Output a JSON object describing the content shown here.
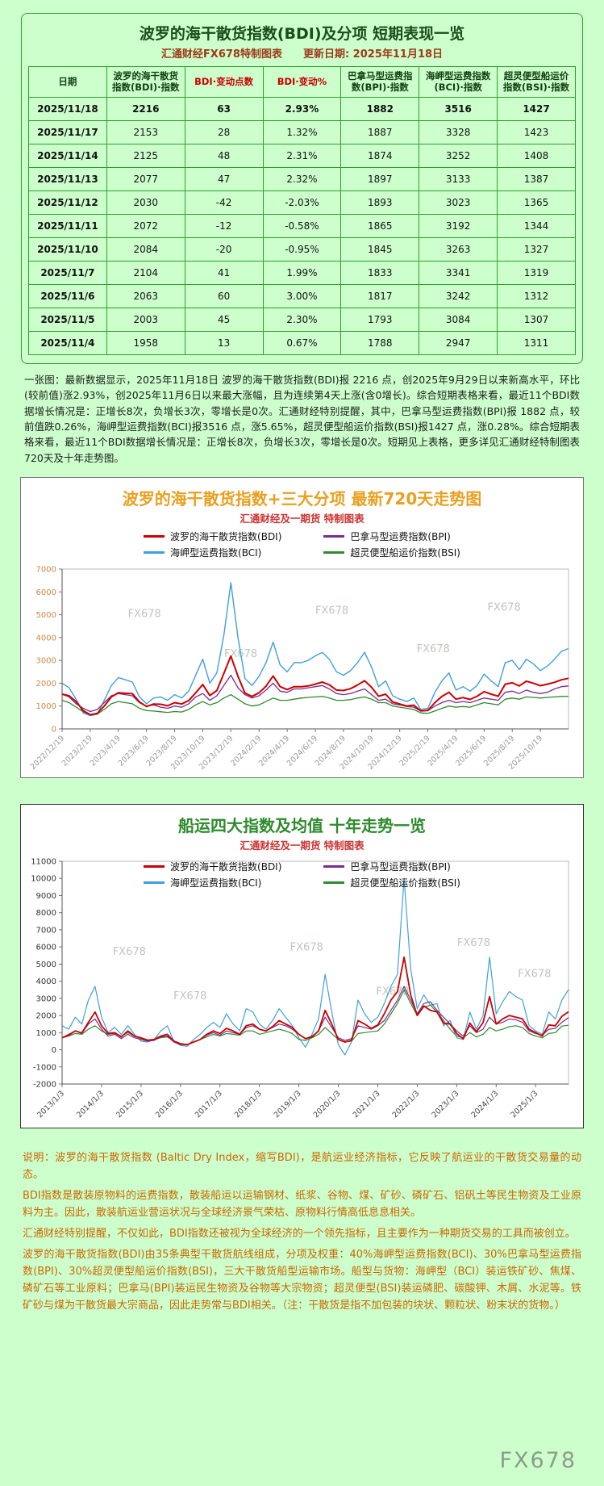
{
  "page": {
    "watermark": "FX678",
    "background": "#ccffcc"
  },
  "table_section": {
    "title": "波罗的海干散货指数(BDI)及分项  短期表现一览",
    "subtitle": "汇通财经FX678特制图表　　更新日期: 2025年11月18日",
    "columns": [
      "日期",
      "波罗的海干散货指数(BDI)·指数",
      "BDI·变动点数",
      "BDI·变动%",
      "巴拿马型运费指数(BPI)·指数",
      "海岬型运费指数(BCI)·指数",
      "超灵便型船运价指数(BSI)·指数"
    ],
    "highlight_columns": [
      2,
      3
    ],
    "rows": [
      [
        "2025/11/18",
        "2216",
        "63",
        "2.93%",
        "1882",
        "3516",
        "1427"
      ],
      [
        "2025/11/17",
        "2153",
        "28",
        "1.32%",
        "1887",
        "3328",
        "1423"
      ],
      [
        "2025/11/14",
        "2125",
        "48",
        "2.31%",
        "1874",
        "3252",
        "1408"
      ],
      [
        "2025/11/13",
        "2077",
        "47",
        "2.32%",
        "1897",
        "3133",
        "1387"
      ],
      [
        "2025/11/12",
        "2030",
        "-42",
        "-2.03%",
        "1893",
        "3023",
        "1365"
      ],
      [
        "2025/11/11",
        "2072",
        "-12",
        "-0.58%",
        "1865",
        "3192",
        "1344"
      ],
      [
        "2025/11/10",
        "2084",
        "-20",
        "-0.95%",
        "1845",
        "3263",
        "1327"
      ],
      [
        "2025/11/7",
        "2104",
        "41",
        "1.99%",
        "1833",
        "3341",
        "1319"
      ],
      [
        "2025/11/6",
        "2063",
        "60",
        "3.00%",
        "1817",
        "3242",
        "1312"
      ],
      [
        "2025/11/5",
        "2003",
        "45",
        "2.30%",
        "1793",
        "3084",
        "1307"
      ],
      [
        "2025/11/4",
        "1958",
        "13",
        "0.67%",
        "1788",
        "2947",
        "1311"
      ]
    ],
    "note": "一张图：最新数据显示，2025年11月18日 波罗的海干散货指数(BDI)报 2216 点，创2025年9月29日以来新高水平，环比(较前值)涨2.93%，创2025年11月6日以来最大涨幅，且为连续第4天上涨(含0增长)。综合短期表格来看，最近11个BDI数据增长情况是：正增长8次，负增长3次，零增长是0次。汇通财经特别提醒，其中，巴拿马型运费指数(BPI)报 1882 点，较前值跌0.26%，海岬型运费指数(BCI)报3516 点，涨5.65%，超灵便型船运价指数(BSI)报1427 点，涨0.28%。综合短期表格来看，最近11个BDI数据增长情况是：正增长8次，负增长3次，零增长是0次。短期见上表格，更多详见汇通财经特制图表720天及十年走势图。"
  },
  "chart_data": [
    {
      "type": "line",
      "title": "波罗的海干散货指数+三大分项  最新720天走势图",
      "subtitle": "汇通财经及一期货 特制图表",
      "title_color": "#e8a020",
      "subtitle_color": "#cc3333",
      "ytick_color": "#cc8844",
      "xtick_color": "#999999",
      "ylim": [
        0,
        7000
      ],
      "ytick_step": 1000,
      "legend_position": "top",
      "grid": false,
      "x_labels": [
        "2022/12/19",
        "2023/2/19",
        "2023/4/19",
        "2023/6/19",
        "2023/8/19",
        "2023/10/19",
        "2023/12/19",
        "2024/2/19",
        "2024/4/19",
        "2024/6/19",
        "2024/8/19",
        "2024/10/19",
        "2024/12/19",
        "2025/2/19",
        "2025/4/19",
        "2025/6/19",
        "2025/8/19",
        "2025/10/19"
      ],
      "series": [
        {
          "name": "波罗的海干散货指数(BDI)",
          "color": "#cc0000",
          "width": 2,
          "values": [
            1520,
            1450,
            1200,
            800,
            620,
            680,
            1000,
            1400,
            1580,
            1560,
            1540,
            1180,
            980,
            1090,
            1080,
            1010,
            1150,
            1090,
            1240,
            1580,
            1940,
            1460,
            1680,
            2430,
            3190,
            2300,
            1570,
            1420,
            1580,
            1870,
            2320,
            1850,
            1720,
            1850,
            1850,
            1880,
            1960,
            2050,
            1930,
            1700,
            1680,
            1760,
            1920,
            2110,
            1820,
            1430,
            1520,
            1180,
            1090,
            1000,
            1040,
            790,
            810,
            1150,
            1420,
            1600,
            1300,
            1370,
            1290,
            1430,
            1630,
            1520,
            1430,
            1960,
            2020,
            1880,
            2090,
            2000,
            1890,
            1960,
            2040,
            2150,
            2216
          ]
        },
        {
          "name": "巴拿马型运费指数(BPI)",
          "color": "#7a2d8e",
          "width": 1.3,
          "values": [
            1520,
            1400,
            1100,
            900,
            760,
            850,
            1150,
            1450,
            1550,
            1500,
            1450,
            1150,
            1000,
            1050,
            950,
            900,
            1000,
            950,
            1100,
            1400,
            1550,
            1250,
            1450,
            1900,
            2350,
            1800,
            1500,
            1350,
            1450,
            1700,
            2000,
            1650,
            1600,
            1750,
            1750,
            1800,
            1850,
            1900,
            1750,
            1550,
            1500,
            1550,
            1650,
            1750,
            1500,
            1250,
            1300,
            1100,
            1050,
            980,
            950,
            780,
            800,
            1000,
            1150,
            1250,
            1150,
            1200,
            1150,
            1250,
            1350,
            1300,
            1250,
            1600,
            1650,
            1550,
            1700,
            1600,
            1550,
            1600,
            1750,
            1850,
            1882
          ]
        },
        {
          "name": "海岬型运费指数(BCI)",
          "color": "#3fa0dc",
          "width": 1.4,
          "values": [
            2000,
            1800,
            1300,
            700,
            580,
            640,
            1250,
            1900,
            2250,
            2150,
            2050,
            1400,
            1100,
            1350,
            1400,
            1250,
            1500,
            1350,
            1650,
            2350,
            3050,
            2000,
            2450,
            4100,
            6400,
            4000,
            2200,
            1900,
            2300,
            2900,
            3800,
            2800,
            2500,
            2900,
            2900,
            3000,
            3200,
            3350,
            3050,
            2500,
            2350,
            2550,
            2900,
            3350,
            2700,
            1850,
            2100,
            1450,
            1300,
            1200,
            1350,
            850,
            900,
            1600,
            2100,
            2450,
            1700,
            1850,
            1650,
            1900,
            2400,
            2100,
            1850,
            2900,
            3000,
            2600,
            3050,
            2850,
            2550,
            2750,
            3050,
            3400,
            3516
          ]
        },
        {
          "name": "超灵便型船运价指数(BSI)",
          "color": "#2e8b2e",
          "width": 1.3,
          "values": [
            1250,
            1150,
            950,
            750,
            620,
            650,
            850,
            1100,
            1200,
            1150,
            1100,
            900,
            800,
            780,
            750,
            720,
            760,
            740,
            850,
            1050,
            1200,
            1050,
            1150,
            1350,
            1500,
            1300,
            1100,
            1000,
            1050,
            1200,
            1350,
            1250,
            1250,
            1300,
            1350,
            1380,
            1400,
            1420,
            1350,
            1250,
            1250,
            1280,
            1350,
            1400,
            1300,
            1150,
            1150,
            1000,
            950,
            900,
            850,
            700,
            680,
            780,
            900,
            1000,
            950,
            980,
            950,
            1050,
            1150,
            1100,
            1050,
            1300,
            1350,
            1300,
            1400,
            1380,
            1350,
            1380,
            1400,
            1420,
            1427
          ]
        }
      ]
    },
    {
      "type": "line",
      "title": "船运四大指数及均值 十年走势一览",
      "subtitle": "汇通财经及一期货 特制图表",
      "title_color": "#2e8b2e",
      "subtitle_color": "#cc3333",
      "ytick_color": "#333333",
      "xtick_color": "#444444",
      "ylim": [
        -2000,
        11000
      ],
      "ytick_step": 1000,
      "legend_position": "inside-top",
      "grid": false,
      "x_labels": [
        "2013/1/3",
        "2014/1/3",
        "2015/1/3",
        "2016/1/3",
        "2017/1/3",
        "2018/1/3",
        "2019/1/3",
        "2020/1/3",
        "2021/1/3",
        "2022/1/3",
        "2023/1/3",
        "2024/1/3",
        "2025/1/3"
      ],
      "series": [
        {
          "name": "波罗的海干散货指数(BDI)",
          "color": "#cc0000",
          "width": 1.8,
          "values": [
            700,
            850,
            1100,
            980,
            1600,
            2200,
            1400,
            950,
            1000,
            750,
            1100,
            800,
            700,
            560,
            600,
            800,
            900,
            500,
            350,
            300,
            450,
            600,
            900,
            1100,
            950,
            1250,
            1100,
            900,
            1400,
            1500,
            1200,
            1100,
            1350,
            1700,
            1500,
            1300,
            900,
            650,
            750,
            1100,
            2300,
            1500,
            600,
            450,
            550,
            1700,
            1500,
            1250,
            1450,
            2100,
            2900,
            3400,
            5400,
            3200,
            2000,
            2550,
            2300,
            2200,
            1550,
            1500,
            950,
            640,
            1560,
            1050,
            1580,
            3100,
            1500,
            1800,
            2000,
            1900,
            1800,
            1200,
            1000,
            800,
            1450,
            1400,
            1950,
            2216
          ]
        },
        {
          "name": "巴拿马型运费指数(BPI)",
          "color": "#7a2d8e",
          "width": 1.2,
          "values": [
            700,
            900,
            1100,
            950,
            1500,
            1800,
            1200,
            800,
            900,
            650,
            900,
            700,
            600,
            500,
            550,
            750,
            800,
            450,
            300,
            290,
            450,
            600,
            850,
            1000,
            850,
            1100,
            1000,
            900,
            1300,
            1400,
            1200,
            1100,
            1300,
            1500,
            1400,
            1200,
            900,
            650,
            800,
            1100,
            1900,
            1300,
            700,
            550,
            650,
            1400,
            1300,
            1200,
            1400,
            1700,
            2300,
            2900,
            3700,
            2900,
            2100,
            2700,
            2800,
            2300,
            1900,
            1500,
            1100,
            800,
            1400,
            1000,
            1200,
            1900,
            1500,
            1600,
            1800,
            1750,
            1600,
            1100,
            950,
            850,
            1200,
            1250,
            1600,
            1882
          ]
        },
        {
          "name": "海岬型运费指数(BCI)",
          "color": "#3fa0dc",
          "width": 1.2,
          "values": [
            1400,
            1200,
            1900,
            1500,
            2900,
            3700,
            1900,
            1000,
            1300,
            900,
            1400,
            900,
            500,
            450,
            600,
            1100,
            1400,
            500,
            250,
            200,
            600,
            900,
            1300,
            1600,
            1300,
            2100,
            1500,
            1100,
            2400,
            2200,
            1500,
            1200,
            1700,
            2400,
            1900,
            1400,
            700,
            150,
            900,
            1800,
            4400,
            2200,
            300,
            -300,
            450,
            2900,
            2100,
            1600,
            1900,
            2700,
            3700,
            4400,
            10000,
            4700,
            2400,
            3200,
            2600,
            2700,
            1400,
            1700,
            700,
            600,
            2200,
            1200,
            2000,
            5400,
            2100,
            2800,
            3400,
            3100,
            2900,
            1400,
            1100,
            900,
            2200,
            1800,
            2900,
            3516
          ]
        },
        {
          "name": "超灵便型船运价指数(BSI)",
          "color": "#2e8b2e",
          "width": 1.2,
          "values": [
            700,
            800,
            950,
            900,
            1200,
            1400,
            1100,
            900,
            950,
            800,
            1000,
            800,
            650,
            550,
            600,
            700,
            750,
            500,
            350,
            300,
            450,
            600,
            750,
            900,
            800,
            950,
            900,
            850,
            1100,
            1100,
            900,
            1000,
            1100,
            1200,
            1100,
            950,
            600,
            550,
            700,
            900,
            1300,
            950,
            600,
            450,
            500,
            950,
            1000,
            1050,
            1100,
            1500,
            2100,
            2700,
            3500,
            2700,
            2000,
            2500,
            2600,
            2200,
            1700,
            1200,
            800,
            700,
            1000,
            750,
            900,
            1300,
            1100,
            1200,
            1350,
            1400,
            1300,
            950,
            800,
            700,
            950,
            1000,
            1380,
            1427
          ]
        }
      ]
    }
  ],
  "footer": {
    "lines": [
      "说明：波罗的海干散货指数 (Baltic Dry Index，缩写BDI)，是航运业经济指标，它反映了航运业的干散货交易量的动态。",
      "BDI指数是散装原物料的运费指数，散装船运以运输钢材、纸浆、谷物、煤、矿砂、磷矿石、铝矾土等民生物资及工业原料为主。因此，散装航运业营运状况与全球经济景气荣枯、原物料行情高低息息相关。",
      "汇通财经特别提醒，不仅如此，BDI指数还被视为全球经济的一个领先指标，且主要作为一种期货交易的工具而被创立。",
      "波罗的海干散货指数(BDI)由35条典型干散货航线组成，分项及权重：40%海岬型运费指数(BCI)、30%巴拿马型运费指数(BPI)、30%超灵便型船运价指数(BSI)，三大干散货船型运输市场。船型与货物：海岬型（BCI）装运铁矿砂、焦煤、磷矿石等工业原料；巴拿马(BPI)装运民生物资及谷物等大宗物资；超灵便型(BSI)装运磷肥、碳酸钾、木屑、水泥等。铁矿砂与煤为干散货最大宗商品，因此走势常与BDI相关。（注：干散货是指不加包装的块状、颗粒状、粉末状的货物。）"
    ]
  }
}
